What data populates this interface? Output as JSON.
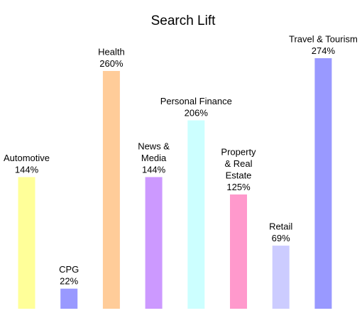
{
  "chart_data": {
    "type": "bar",
    "title": "Search Lift",
    "xlabel": "",
    "ylabel": "",
    "grid": false,
    "legend": "none",
    "categories": [
      "Automotive",
      "CPG",
      "Health",
      "News & Media",
      "Personal Finance",
      "Property & Real Estate",
      "Retail",
      "Travel & Tourism"
    ],
    "label_lines": [
      [
        "Automotive"
      ],
      [
        "CPG"
      ],
      [
        "Health"
      ],
      [
        "News &",
        "Media"
      ],
      [
        "Personal Finance"
      ],
      [
        "Property",
        "& Real",
        "Estate"
      ],
      [
        "Retail"
      ],
      [
        "Travel & Tourism"
      ]
    ],
    "values": [
      144,
      22,
      260,
      144,
      206,
      125,
      69,
      274
    ],
    "value_labels": [
      "144%",
      "22%",
      "260%",
      "144%",
      "206%",
      "125%",
      "69%",
      "274%"
    ],
    "unit": "%",
    "colors": [
      "#ffff99",
      "#9999ff",
      "#ffcc99",
      "#cc99ff",
      "#ccffff",
      "#ff99cc",
      "#ccccff",
      "#9999ff"
    ]
  }
}
